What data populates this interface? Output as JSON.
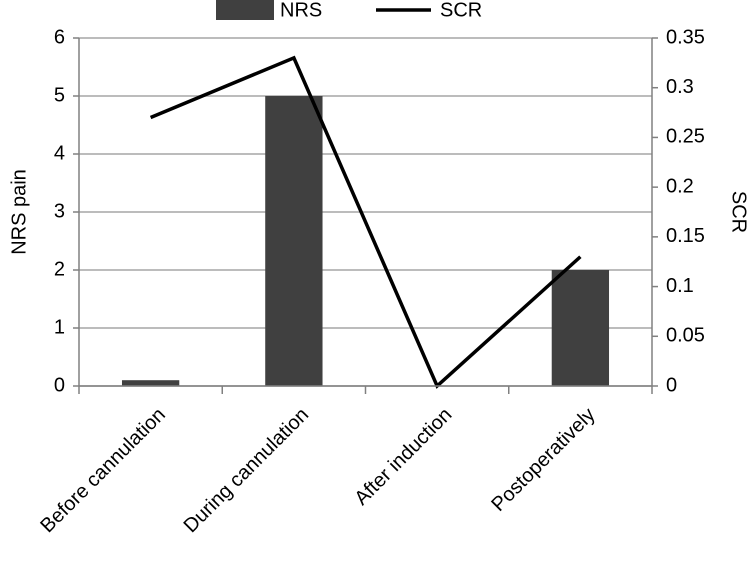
{
  "chart_data": {
    "type": "bar",
    "categories": [
      "Before cannulation",
      "During cannulation",
      "After induction",
      "Postoperatively"
    ],
    "series": [
      {
        "name": "NRS",
        "type": "bar",
        "color": "#404040",
        "values": [
          0.1,
          5,
          0,
          2
        ]
      },
      {
        "name": "SCR",
        "type": "line",
        "color": "#000000",
        "axis": "y2",
        "values": [
          0.27,
          0.33,
          0,
          0.13
        ]
      }
    ],
    "y_label": "NRS pain",
    "y2_label": "SCR",
    "ylim": [
      0,
      6
    ],
    "yticks": [
      0,
      1,
      2,
      3,
      4,
      5,
      6
    ],
    "y2lim": [
      0,
      0.35
    ],
    "y2ticks": [
      0,
      0.05,
      0.1,
      0.15,
      0.2,
      0.25,
      0.3,
      0.35
    ],
    "grid": true,
    "legend": "top"
  }
}
